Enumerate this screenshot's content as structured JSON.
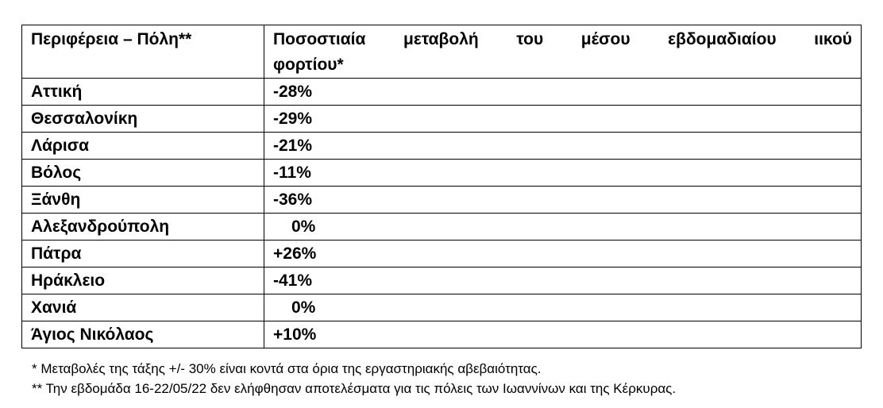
{
  "table": {
    "header": {
      "region": "Περιφέρεια – Πόλη**",
      "value_line1": "Ποσοστιαία μεταβολή του μέσου εβδομαδιαίου ιικού",
      "value_line2": "φορτίου*"
    },
    "rows": [
      {
        "region": "Αττική",
        "value": "-28%"
      },
      {
        "region": "Θεσσαλονίκη",
        "value": "-29%"
      },
      {
        "region": "Λάρισα",
        "value": "-21%"
      },
      {
        "region": "Βόλος",
        "value": "-11%"
      },
      {
        "region": "Ξάνθη",
        "value": "-36%"
      },
      {
        "region": "Αλεξανδρούπολη",
        "value": "0%"
      },
      {
        "region": "Πάτρα",
        "value": "+26%"
      },
      {
        "region": "Ηράκλειο",
        "value": "-41%"
      },
      {
        "region": "Χανιά",
        "value": "0%"
      },
      {
        "region": "Άγιος Νικόλαος",
        "value": "+10%"
      }
    ]
  },
  "notes": {
    "note1": "* Μεταβολές της τάξης +/- 30% είναι κοντά στα όρια της εργαστηριακής αβεβαιότητας.",
    "note2": "** Την εβδομάδα 16-22/05/22 δεν ελήφθησαν αποτελέσματα για τις πόλεις των Ιωαννίνων και της Κέρκυρας."
  }
}
